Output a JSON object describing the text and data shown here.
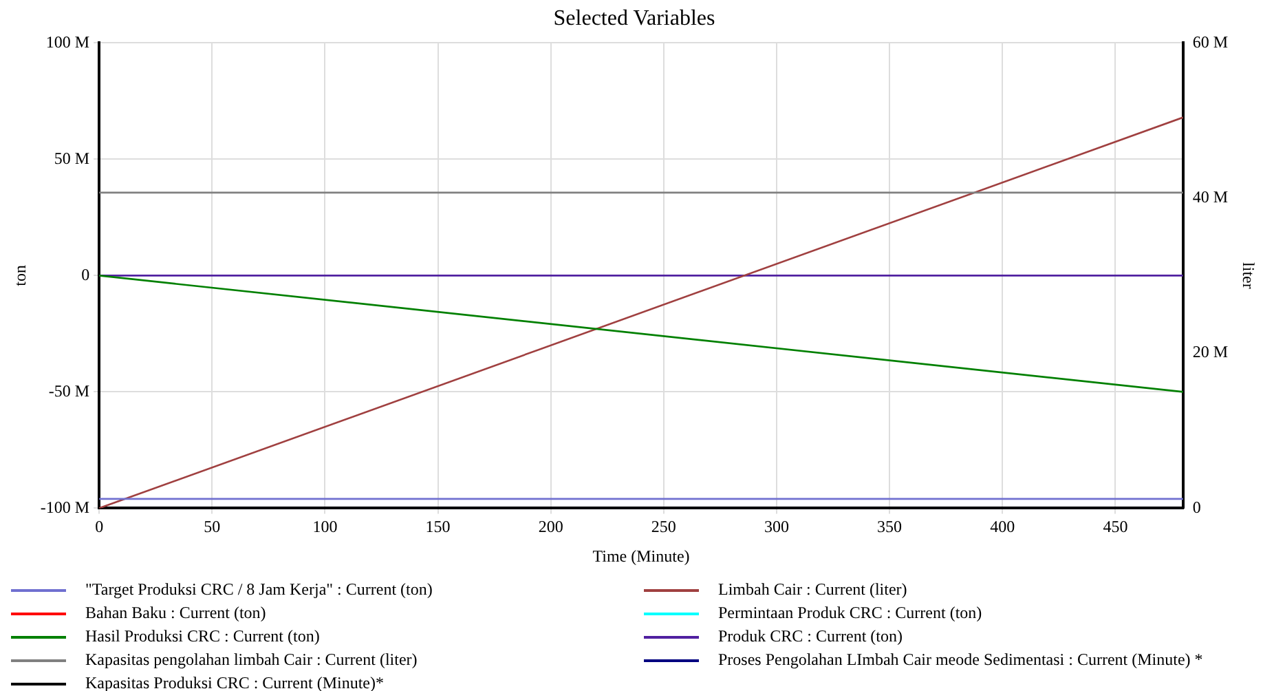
{
  "chart_data": {
    "type": "line",
    "title": "Selected Variables",
    "xlabel": "Time (Minute)",
    "ylabel": "ton",
    "y2label": "liter",
    "x": [
      0,
      480
    ],
    "xlim": [
      0,
      480
    ],
    "xticks": [
      0,
      50,
      100,
      150,
      200,
      250,
      300,
      350,
      400,
      450
    ],
    "ylim": [
      -100000000,
      100000000
    ],
    "yticks": [
      {
        "value": -100000000,
        "label": "-100 M"
      },
      {
        "value": -50000000,
        "label": "-50 M"
      },
      {
        "value": 0,
        "label": "0"
      },
      {
        "value": 50000000,
        "label": "50 M"
      },
      {
        "value": 100000000,
        "label": "100 M"
      }
    ],
    "y2lim": [
      0,
      60000000
    ],
    "y2ticks": [
      {
        "value": 0,
        "label": "0"
      },
      {
        "value": 20000000,
        "label": "20 M"
      },
      {
        "value": 40000000,
        "label": "40 M"
      },
      {
        "value": 60000000,
        "label": "60 M"
      }
    ],
    "grid": true,
    "legend": "bottom",
    "marker": "none",
    "line_style": "solid",
    "series": [
      {
        "name": "\"Target Produksi CRC / 8 Jam Kerja\" : Current (ton)",
        "color": "#7070d0",
        "values": [
          -96000000,
          -96000000
        ]
      },
      {
        "name": "Bahan Baku : Current (ton)",
        "color": "#ff0000",
        "values": [
          null,
          null
        ]
      },
      {
        "name": "Hasil Produksi CRC : Current (ton)",
        "color": "#008000",
        "values": [
          0,
          -50000000
        ]
      },
      {
        "name": "Kapasitas pengolahan limbah Cair : Current (liter)",
        "color": "#808080",
        "axis": "y2",
        "values": [
          40700000,
          40700000
        ]
      },
      {
        "name": "Kapasitas Produksi CRC : Current (Minute)*",
        "color": "#000000",
        "values": [
          null,
          null
        ]
      },
      {
        "name": "Limbah Cair : Current (liter)",
        "color": "#a04040",
        "axis": "y2",
        "values": [
          0,
          50400000
        ]
      },
      {
        "name": "Permintaan Produk CRC : Current (ton)",
        "color": "#00ffff",
        "values": [
          null,
          null
        ]
      },
      {
        "name": "Produk CRC : Current (ton)",
        "color": "#5020a0",
        "values": [
          0,
          0
        ]
      },
      {
        "name": "Proses Pengolahan LImbah Cair meode Sedimentasi : Current (Minute) *",
        "color": "#000080",
        "values": [
          null,
          null
        ]
      }
    ]
  }
}
